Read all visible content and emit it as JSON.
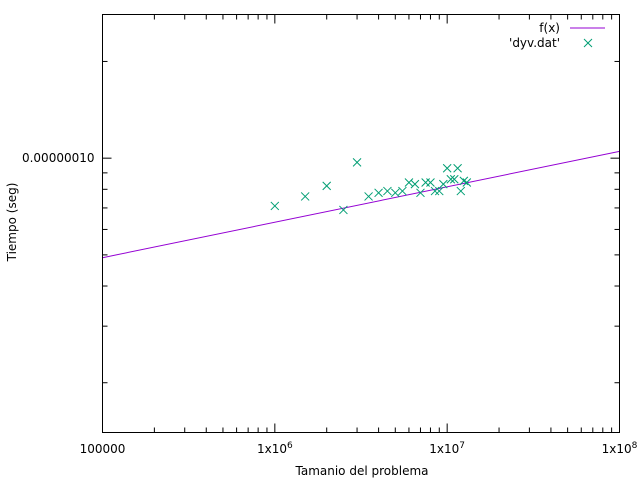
{
  "chart_data": {
    "type": "scatter",
    "title": "",
    "xlabel": "Tamanio del problema",
    "ylabel": "Tiempo (seg)",
    "x_scale": "log",
    "y_scale": "log",
    "xlim": [
      100000,
      100000000
    ],
    "ylim": [
      1.4e-08,
      2.8e-07
    ],
    "x_ticks": [
      {
        "value": 100000,
        "label": "100000"
      },
      {
        "value": 1000000,
        "label": "1x10",
        "sup": "6"
      },
      {
        "value": 10000000,
        "label": "1x10",
        "sup": "7"
      },
      {
        "value": 100000000,
        "label": "1x10",
        "sup": "8"
      }
    ],
    "y_ticks": [
      {
        "value": 1e-07,
        "label": "0.00000010"
      }
    ],
    "grid": false,
    "legend_position": "top-right",
    "series": [
      {
        "name": "f(x)",
        "kind": "line",
        "color": "#9400d3",
        "x": [
          100000,
          100000000
        ],
        "y": [
          4.9e-08,
          1.05e-07
        ]
      },
      {
        "name": "'dyv.dat'",
        "kind": "points",
        "color": "#009e73",
        "x": [
          1000000,
          1500000,
          2000000,
          2500000,
          3000000,
          3500000,
          4000000,
          4500000,
          5000000,
          5500000,
          6000000,
          6500000,
          7000000,
          7500000,
          8000000,
          8500000,
          9000000,
          9500000,
          10000000,
          10500000,
          11000000,
          11500000,
          12000000,
          12500000,
          13000000
        ],
        "y": [
          7.1e-08,
          7.6e-08,
          8.2e-08,
          6.9e-08,
          9.7e-08,
          7.6e-08,
          7.8e-08,
          7.9e-08,
          7.8e-08,
          7.9e-08,
          8.4e-08,
          8.3e-08,
          7.8e-08,
          8.4e-08,
          8.4e-08,
          7.9e-08,
          7.9e-08,
          8.3e-08,
          9.3e-08,
          8.6e-08,
          8.6e-08,
          9.3e-08,
          7.9e-08,
          8.5e-08,
          8.4e-08
        ]
      }
    ]
  }
}
